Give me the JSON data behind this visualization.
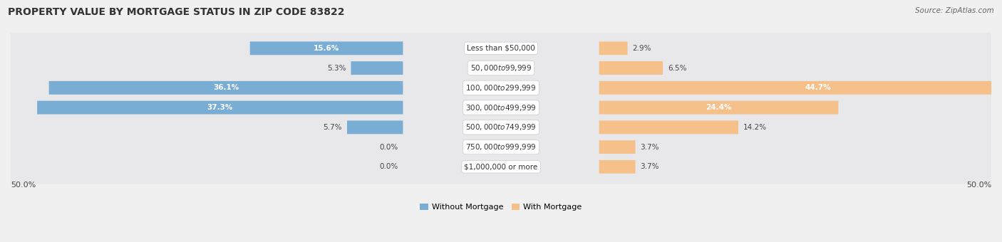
{
  "title": "PROPERTY VALUE BY MORTGAGE STATUS IN ZIP CODE 83822",
  "source": "Source: ZipAtlas.com",
  "categories": [
    "Less than $50,000",
    "$50,000 to $99,999",
    "$100,000 to $299,999",
    "$300,000 to $499,999",
    "$500,000 to $749,999",
    "$750,000 to $999,999",
    "$1,000,000 or more"
  ],
  "without_mortgage": [
    15.6,
    5.3,
    36.1,
    37.3,
    5.7,
    0.0,
    0.0
  ],
  "with_mortgage": [
    2.9,
    6.5,
    44.7,
    24.4,
    14.2,
    3.7,
    3.7
  ],
  "color_without": "#7aadd4",
  "color_with": "#f5c08a",
  "axis_min": -50.0,
  "axis_max": 50.0,
  "axis_label_left": "50.0%",
  "axis_label_right": "50.0%",
  "legend_without": "Without Mortgage",
  "legend_with": "With Mortgage",
  "bg_color": "#f0f0f0",
  "row_bg_color": "#e8e8eb",
  "title_fontsize": 10,
  "source_fontsize": 7.5,
  "bar_label_fontsize": 7.5,
  "category_fontsize": 7.5,
  "label_inside_threshold": 15
}
